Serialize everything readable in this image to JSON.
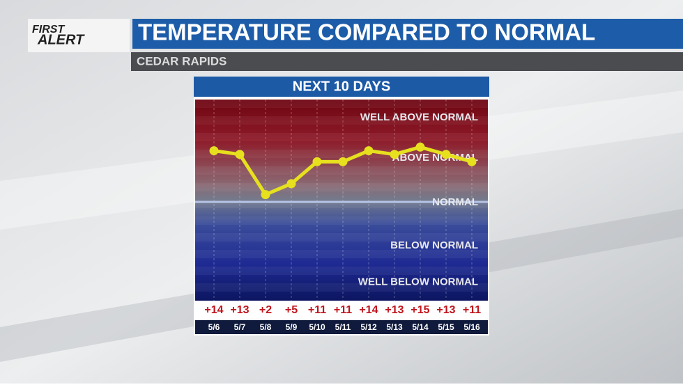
{
  "logo": {
    "top": "FIRST",
    "bottom": "ALERT"
  },
  "header": {
    "title": "TEMPERATURE COMPARED TO NORMAL",
    "subtitle": "CEDAR RAPIDS"
  },
  "chart_data": {
    "type": "line",
    "title": "NEXT 10 DAYS",
    "categories": [
      "5/6",
      "5/7",
      "5/8",
      "5/9",
      "5/10",
      "5/11",
      "5/12",
      "5/13",
      "5/14",
      "5/15",
      "5/16"
    ],
    "values": [
      14,
      13,
      2,
      5,
      11,
      11,
      14,
      13,
      15,
      13,
      11
    ],
    "value_labels": [
      "+14",
      "+13",
      "+2",
      "+5",
      "+11",
      "+11",
      "+14",
      "+13",
      "+15",
      "+13",
      "+11"
    ],
    "color": "#e6e01e",
    "ylim": [
      -27,
      28
    ],
    "yticks": [
      {
        "value": 23,
        "label": "WELL ABOVE NORMAL"
      },
      {
        "value": 12,
        "label": "ABOVE NORMAL"
      },
      {
        "value": 0,
        "label": "NORMAL"
      },
      {
        "value": -12,
        "label": "BELOW NORMAL"
      },
      {
        "value": -22,
        "label": "WELL BELOW NORMAL"
      }
    ]
  }
}
